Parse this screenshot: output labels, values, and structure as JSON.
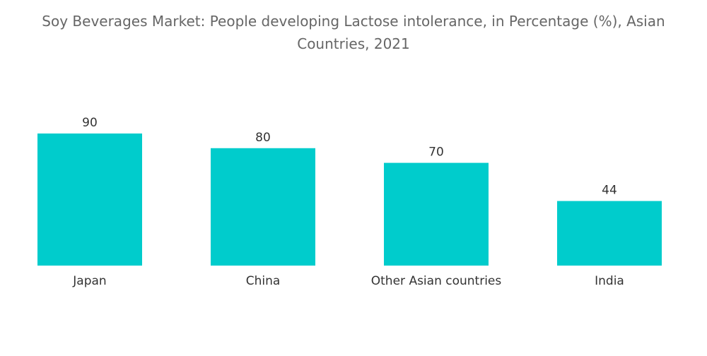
{
  "chart_data": {
    "type": "bar",
    "title": "Soy Beverages Market: People developing Lactose intolerance, in Percentage (%), Asian Countries, 2021",
    "categories": [
      "Japan",
      "China",
      "Other Asian countries",
      "India"
    ],
    "values": [
      90,
      80,
      70,
      44
    ],
    "xlabel": "",
    "ylabel": "",
    "ylim": [
      0,
      90
    ],
    "grid": false,
    "data_labels": true,
    "colors": {
      "bar": "#00cccc",
      "title": "#666666",
      "label": "#333333"
    }
  }
}
